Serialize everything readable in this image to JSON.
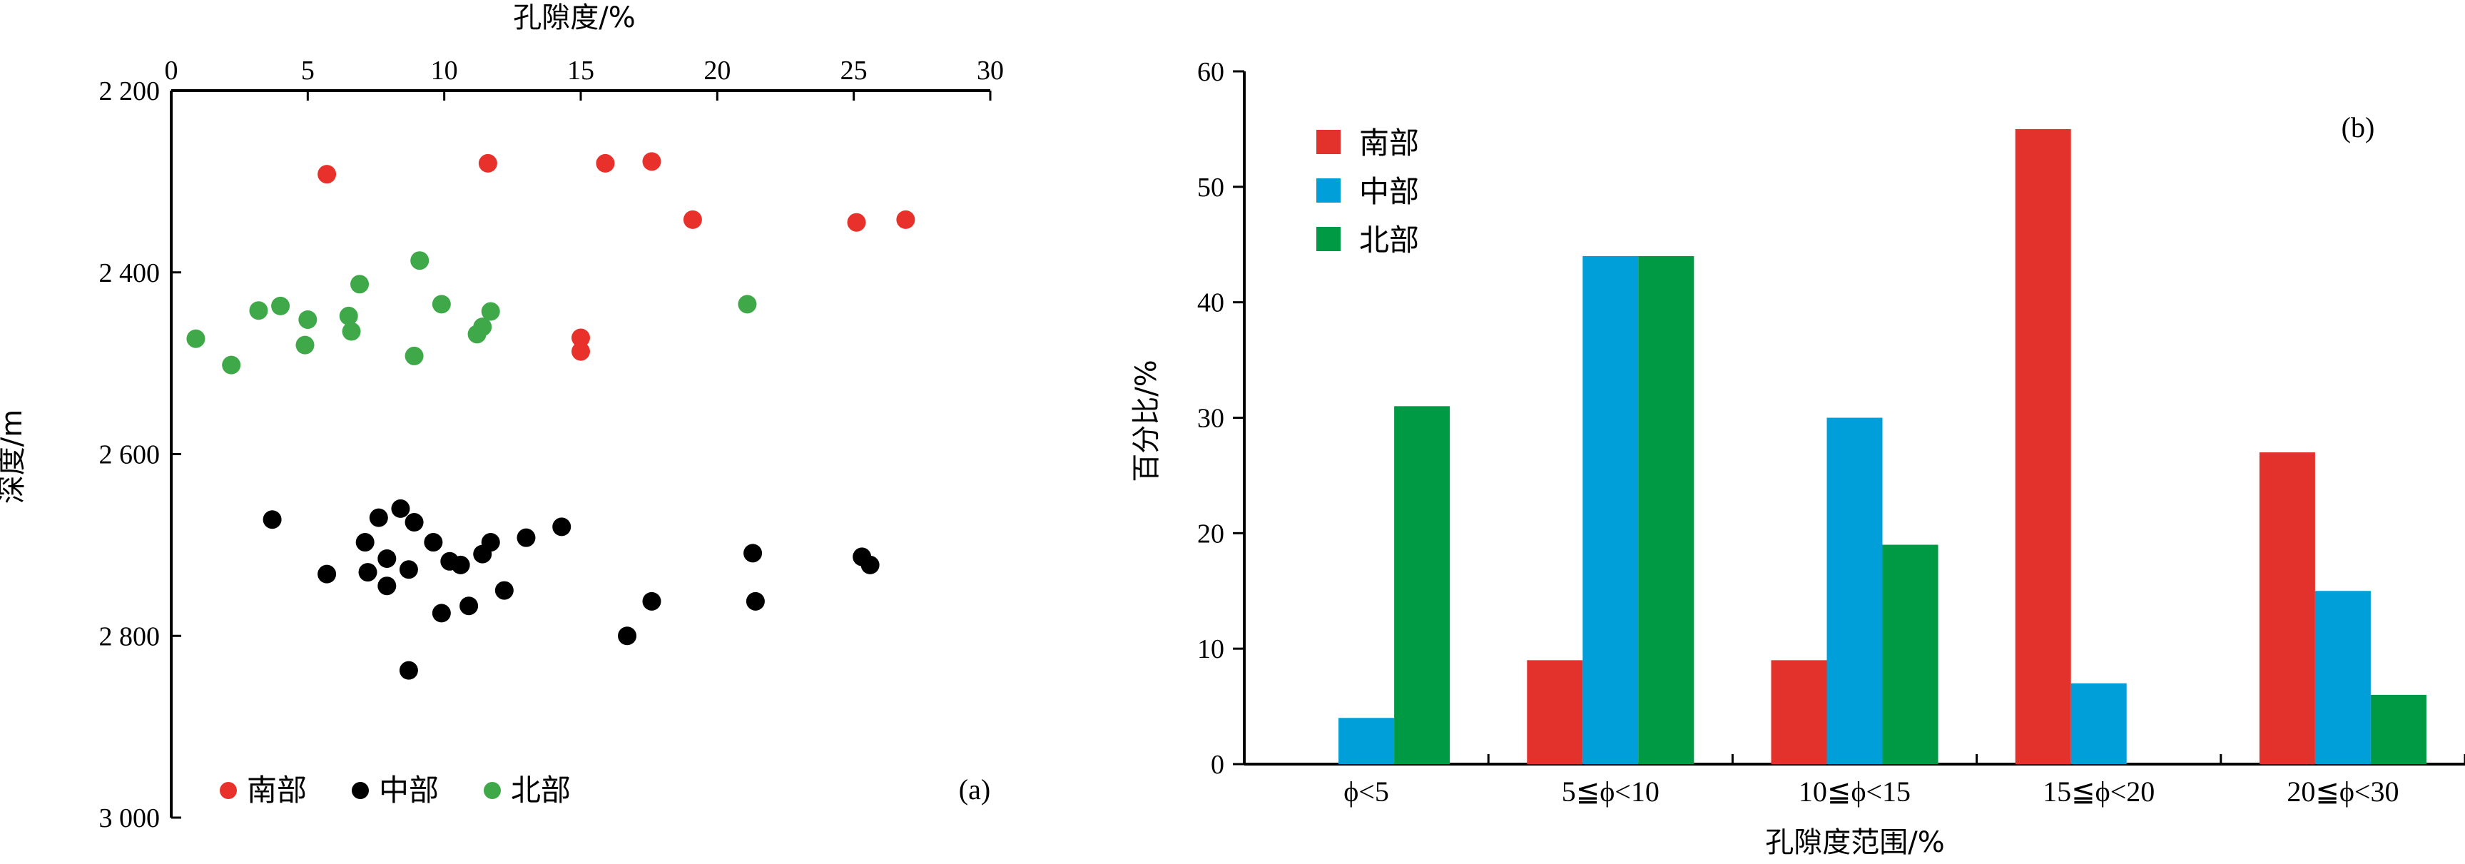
{
  "chart_data": [
    {
      "type": "scatter",
      "panel_label": "(a)",
      "xlabel": "孔隙度/%",
      "ylabel": "深度/m",
      "xlim": [
        0,
        30
      ],
      "ylim": [
        2200,
        3000
      ],
      "y_inverted": true,
      "x_axis_position": "top",
      "xticks": [
        0,
        5,
        10,
        15,
        20,
        25,
        30
      ],
      "xtick_labels": [
        "0",
        "5",
        "10",
        "15",
        "20",
        "25",
        "30"
      ],
      "yticks": [
        2200,
        2400,
        2600,
        2800,
        3000
      ],
      "ytick_labels": [
        "2 200",
        "2 400",
        "2 600",
        "2 800",
        "3 000"
      ],
      "legend_position": "bottom-left",
      "series": [
        {
          "name": "南部",
          "color": "#e8312a",
          "points": [
            [
              5.7,
              2292
            ],
            [
              11.6,
              2280
            ],
            [
              15.9,
              2280
            ],
            [
              17.6,
              2278
            ],
            [
              19.1,
              2342
            ],
            [
              25.1,
              2345
            ],
            [
              26.9,
              2342
            ],
            [
              15.0,
              2472
            ],
            [
              15.0,
              2487
            ]
          ]
        },
        {
          "name": "中部",
          "color": "#000000",
          "points": [
            [
              3.7,
              2672
            ],
            [
              5.7,
              2732
            ],
            [
              7.1,
              2697
            ],
            [
              7.2,
              2730
            ],
            [
              7.6,
              2670
            ],
            [
              7.9,
              2715
            ],
            [
              7.9,
              2745
            ],
            [
              8.4,
              2660
            ],
            [
              8.7,
              2727
            ],
            [
              8.9,
              2675
            ],
            [
              9.6,
              2697
            ],
            [
              9.9,
              2775
            ],
            [
              10.2,
              2718
            ],
            [
              10.6,
              2722
            ],
            [
              10.9,
              2767
            ],
            [
              11.4,
              2710
            ],
            [
              11.7,
              2697
            ],
            [
              12.2,
              2750
            ],
            [
              13.0,
              2692
            ],
            [
              14.3,
              2680
            ],
            [
              8.7,
              2838
            ],
            [
              16.7,
              2800
            ],
            [
              17.6,
              2762
            ],
            [
              21.3,
              2709
            ],
            [
              21.4,
              2762
            ],
            [
              25.3,
              2713
            ],
            [
              25.6,
              2722
            ]
          ]
        },
        {
          "name": "北部",
          "color": "#3fa94a",
          "points": [
            [
              0.9,
              2473
            ],
            [
              2.2,
              2502
            ],
            [
              3.2,
              2442
            ],
            [
              4.0,
              2437
            ],
            [
              5.0,
              2452
            ],
            [
              4.9,
              2480
            ],
            [
              6.5,
              2448
            ],
            [
              6.6,
              2465
            ],
            [
              6.9,
              2413
            ],
            [
              8.9,
              2492
            ],
            [
              9.1,
              2387
            ],
            [
              9.9,
              2435
            ],
            [
              11.2,
              2468
            ],
            [
              11.4,
              2460
            ],
            [
              11.7,
              2443
            ],
            [
              21.1,
              2435
            ]
          ]
        }
      ]
    },
    {
      "type": "bar",
      "panel_label": "(b)",
      "xlabel": "孔隙度范围/%",
      "ylabel": "百分比/%",
      "ylim": [
        0,
        60
      ],
      "yticks": [
        0,
        10,
        20,
        30,
        40,
        50,
        60
      ],
      "legend_position": "top-left",
      "categories": [
        "ϕ<5",
        "5≦ϕ<10",
        "10≦ϕ<15",
        "15≦ϕ<20",
        "20≦ϕ<30"
      ],
      "series": [
        {
          "name": "南部",
          "color": "#e3312b",
          "values": [
            0,
            9,
            9,
            55,
            27
          ]
        },
        {
          "name": "中部",
          "color": "#009fda",
          "values": [
            4,
            44,
            30,
            7,
            15
          ]
        },
        {
          "name": "北部",
          "color": "#009a44",
          "values": [
            31,
            44,
            19,
            0,
            6
          ]
        }
      ]
    }
  ]
}
